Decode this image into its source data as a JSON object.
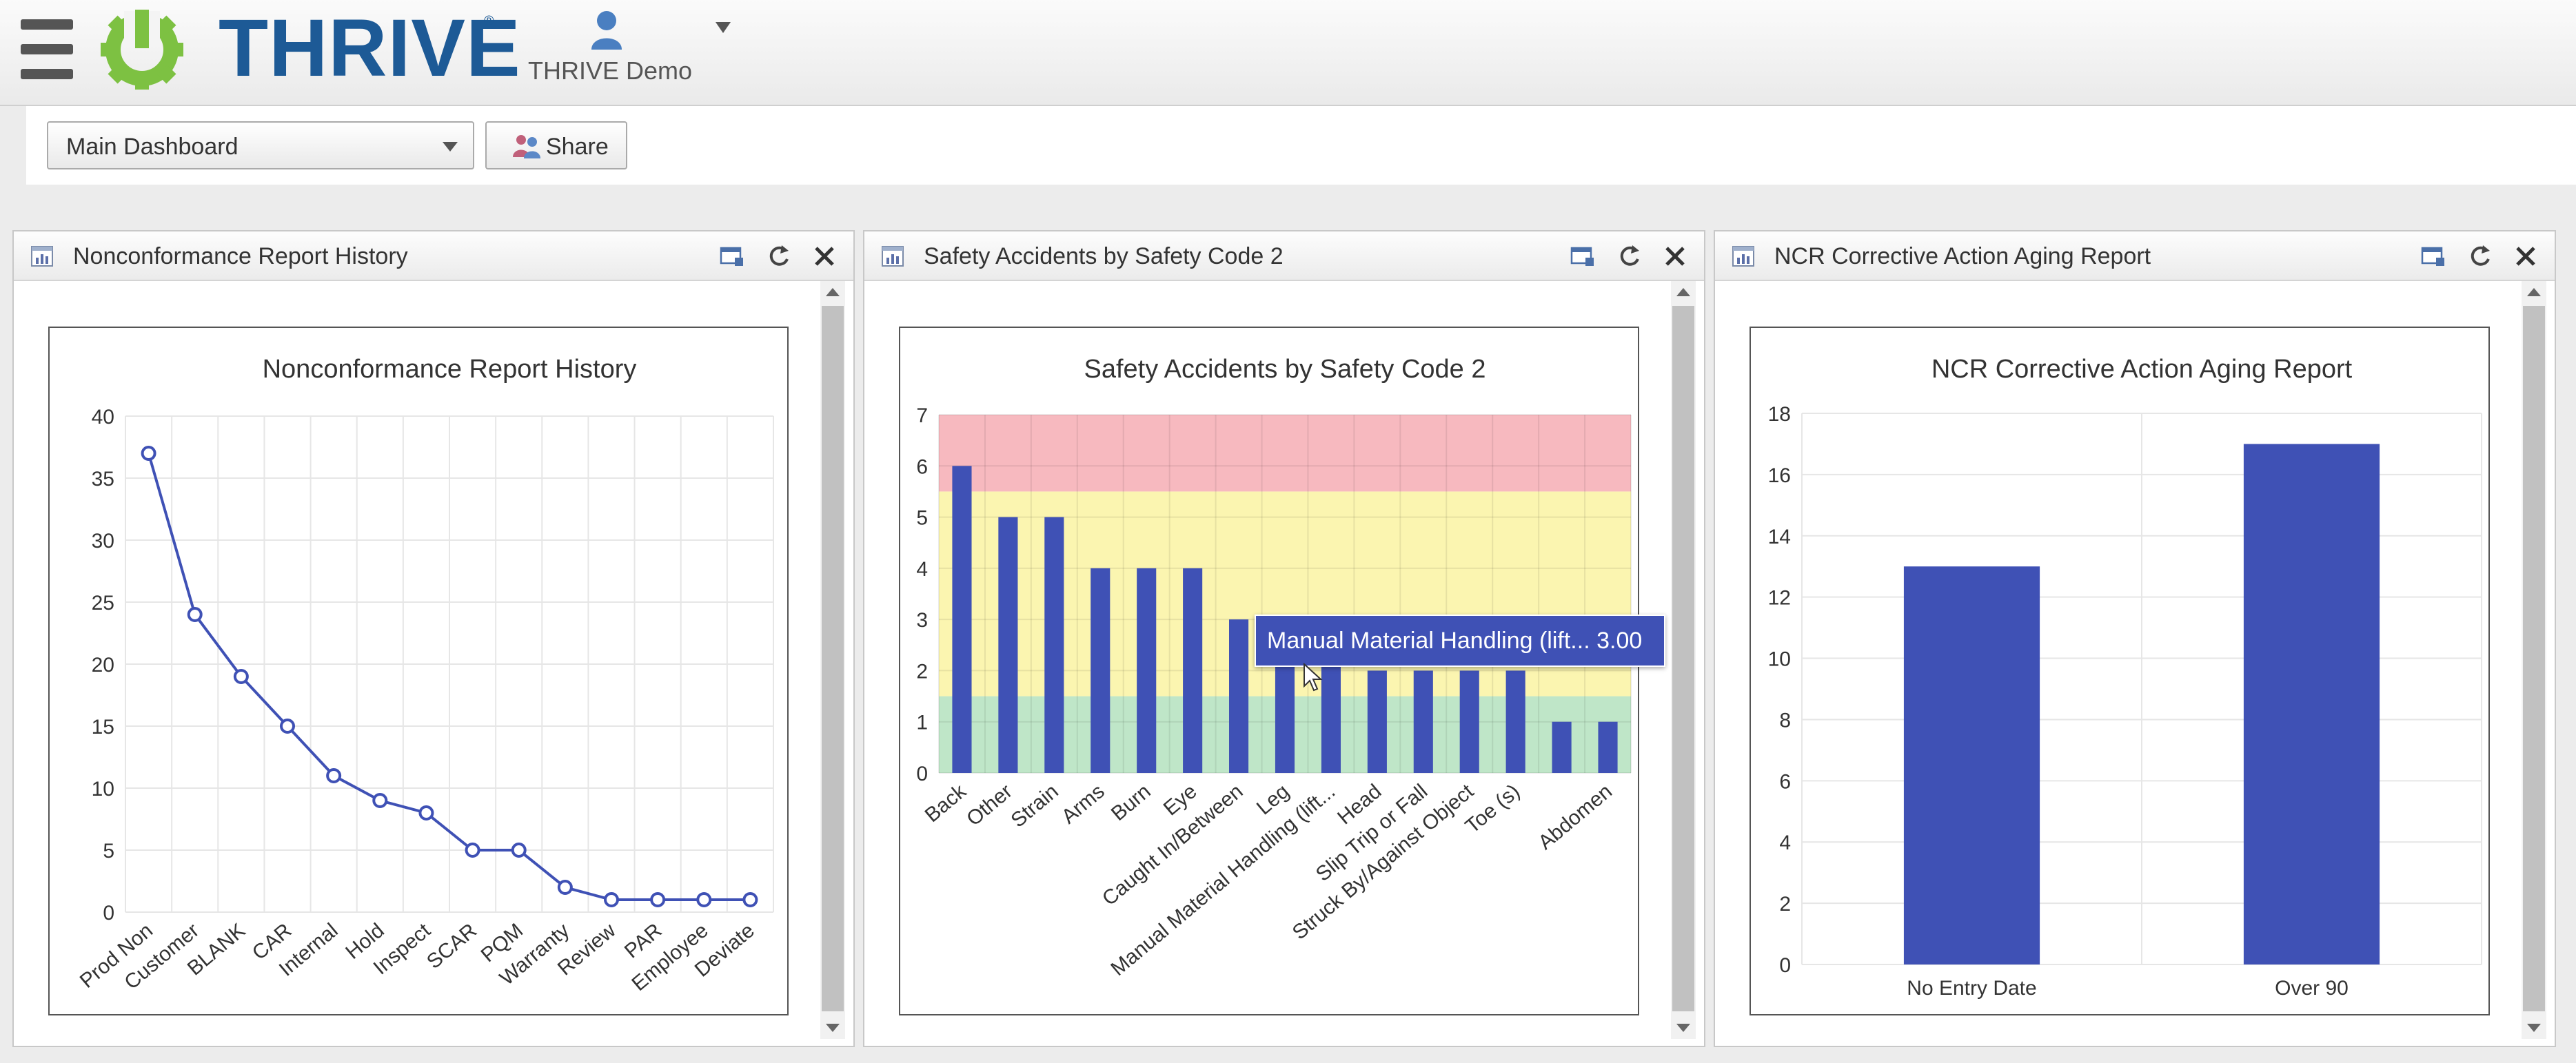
{
  "header": {
    "logo_text": "THRIVE",
    "user_name": "THRIVE Demo"
  },
  "toolbar": {
    "dashboard_select": "Main Dashboard",
    "share_label": "Share"
  },
  "colors": {
    "series": "#3f51b5",
    "band_red": "#f7b9bf",
    "band_yellow": "#fbf5b0",
    "band_green": "#bfe6c8",
    "logo_green": "#7dc142",
    "logo_blue": "#1d5a96"
  },
  "panels": [
    {
      "title": "Nonconformance Report History",
      "chart_data": {
        "type": "line",
        "title": "Nonconformance Report History",
        "categories": [
          "Prod Non",
          "Customer",
          "BLANK",
          "CAR",
          "Internal",
          "Hold",
          "Inspect",
          "SCAR",
          "PQM",
          "Warranty",
          "Review",
          "PAR",
          "Employee",
          "Deviate"
        ],
        "values": [
          37,
          24,
          19,
          15,
          11,
          9,
          8,
          5,
          5,
          2,
          1,
          1,
          1,
          1
        ],
        "ylim": [
          0,
          40
        ],
        "yticks": [
          "0",
          "5",
          "10",
          "15",
          "20",
          "25",
          "30",
          "35",
          "40"
        ],
        "grid": true
      }
    },
    {
      "title": "Safety Accidents by Safety Code 2",
      "chart_data": {
        "type": "bar",
        "title": "Safety Accidents by Safety Code 2",
        "categories": [
          "Back",
          "Other",
          "Strain",
          "Arms",
          "Burn",
          "Eye",
          "Caught In/Between",
          "Leg",
          "Manual Material Handling (lift...",
          "Head",
          "Slip Trip or Fall",
          "Struck By/Against Object",
          "Toe (s)",
          "",
          "Abdomen"
        ],
        "values": [
          6,
          5,
          5,
          4,
          4,
          4,
          3,
          3,
          3,
          2,
          2,
          2,
          2,
          1,
          1
        ],
        "ylim": [
          0,
          7
        ],
        "yticks": [
          "0",
          "1",
          "2",
          "3",
          "4",
          "5",
          "6",
          "7"
        ],
        "bands": [
          {
            "from": 0,
            "to": 1.5,
            "color": "green"
          },
          {
            "from": 1.5,
            "to": 5.5,
            "color": "yellow"
          },
          {
            "from": 5.5,
            "to": 7,
            "color": "red"
          }
        ],
        "grid": true
      },
      "tooltip": "Manual Material Handling (lift... 3.00"
    },
    {
      "title": "NCR Corrective Action Aging Report",
      "chart_data": {
        "type": "bar",
        "title": "NCR Corrective Action Aging Report",
        "categories": [
          "No Entry Date",
          "Over 90"
        ],
        "values": [
          13,
          17
        ],
        "ylim": [
          0,
          18
        ],
        "yticks": [
          "0",
          "2",
          "4",
          "6",
          "8",
          "10",
          "12",
          "14",
          "16",
          "18"
        ],
        "grid": true
      }
    }
  ]
}
